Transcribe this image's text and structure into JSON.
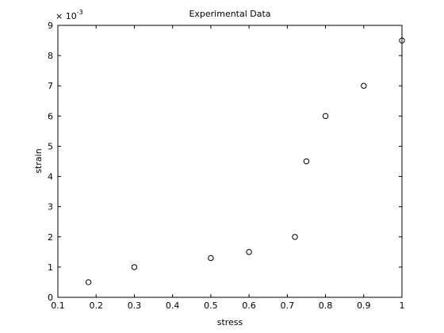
{
  "chart_data": {
    "type": "scatter",
    "title": "Experimental Data",
    "xlabel": "stress",
    "ylabel": "strain",
    "xlim": [
      0.1,
      1
    ],
    "ylim": [
      0,
      0.009
    ],
    "x_ticks": [
      0.1,
      0.2,
      0.3,
      0.4,
      0.5,
      0.6,
      0.7,
      0.8,
      0.9,
      1
    ],
    "x_tick_labels": [
      "0.1",
      "0.2",
      "0.3",
      "0.4",
      "0.5",
      "0.6",
      "0.7",
      "0.8",
      "0.9",
      "1"
    ],
    "y_ticks": [
      0,
      0.001,
      0.002,
      0.003,
      0.004,
      0.005,
      0.006,
      0.007,
      0.008,
      0.009
    ],
    "y_tick_labels": [
      "0",
      "1",
      "2",
      "3",
      "4",
      "5",
      "6",
      "7",
      "8",
      "9"
    ],
    "y_multiplier_base": "× 10",
    "y_multiplier_exponent": "-3",
    "grid": false,
    "marker": "open-circle",
    "series": [
      {
        "x": [
          0.18,
          0.3,
          0.5,
          0.6,
          0.72,
          0.75,
          0.8,
          0.9,
          1.0
        ],
        "y": [
          0.0005,
          0.001,
          0.0013,
          0.0015,
          0.002,
          0.0045,
          0.006,
          0.007,
          0.0085
        ]
      }
    ]
  }
}
